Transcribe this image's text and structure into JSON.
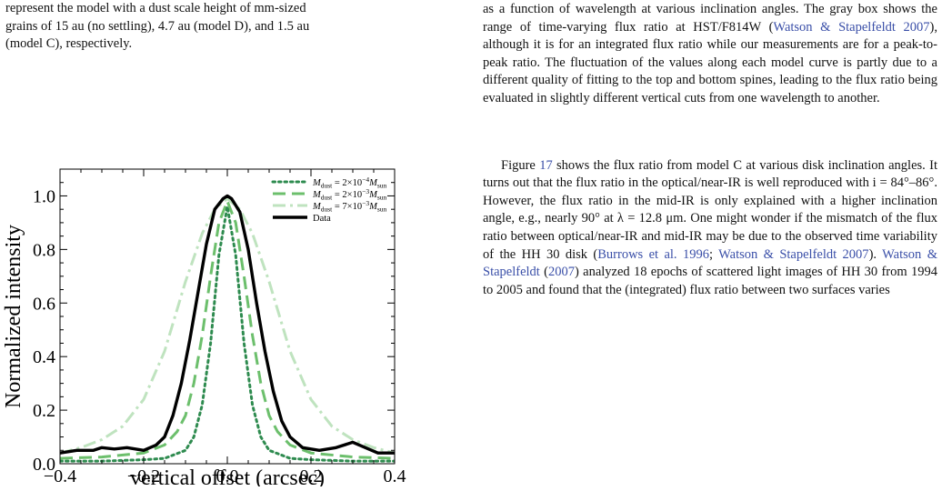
{
  "left_column": {
    "intro_lines": [
      "represent the model with a dust scale height of mm-sized",
      "grains of 15 au (no settling), 4.7 au (model D), and 1.5 au",
      "(model C), respectively."
    ]
  },
  "right_column": {
    "paragraph1": {
      "part1": "as a function of wavelength at various inclination angles. The gray box shows the range of time-varying flux ratio at HST/F814W (",
      "cite1": "Watson & Stapelfeldt 2007",
      "part2": "), although it is for an integrated flux ratio while our measurements are for a peak-to-peak ratio. The fluctuation of the values along each model curve is partly due to a different quality of fitting to the top and bottom spines, leading to the flux ratio being evaluated in slightly different vertical cuts from one wavelength to another."
    },
    "paragraph2": {
      "part1": "Figure ",
      "figref": "17",
      "part2": " shows the flux ratio from model C at various disk inclination angles. It turns out that the flux ratio in the optical/near-IR is well reproduced with i = 84°–86°. However, the flux ratio in the mid-IR is only explained with a higher inclination angle, e.g., nearly 90° at λ = 12.8 μm. One might wonder if the mismatch of the flux ratio between optical/near-IR and mid-IR may be due to the observed time variability of the HH 30 disk (",
      "cite1": "Burrows et al. 1996",
      "sep": "; ",
      "cite2": "Watson & Stapelfeldt 2007",
      "part3": "). ",
      "cite3": "Watson & Stapelfeldt",
      "part4": " (",
      "cite3year": "2007",
      "part5": ") analyzed 18 epochs of scattered light images of HH 30 from 1994 to 2005 and found that the (integrated) flux ratio between two surfaces varies"
    }
  },
  "chart_data": {
    "type": "line",
    "xlabel": "vertical offset (arcsec)",
    "ylabel": "Normalized intensity",
    "xlim": [
      -0.4,
      0.4
    ],
    "ylim": [
      0.0,
      1.1
    ],
    "xticks": [
      -0.4,
      -0.2,
      0.0,
      0.2,
      0.4
    ],
    "xtick_labels": [
      "−0.4",
      "−0.2",
      "0.0",
      "0.2",
      "0.4"
    ],
    "yticks": [
      0.0,
      0.2,
      0.4,
      0.6,
      0.8,
      1.0
    ],
    "ytick_labels": [
      "0.0",
      "0.2",
      "0.4",
      "0.6",
      "0.8",
      "1.0"
    ],
    "legend_position": "top-right",
    "grid": false,
    "series": [
      {
        "name": "M_dust = 2×10⁻⁴ M_sun",
        "legend_main": "M",
        "legend_sub": "dust",
        "legend_mid": " = 2×10",
        "legend_sup": "−4",
        "legend_end_main": "M",
        "legend_end_sub": "sun",
        "color": "#2e8b4f",
        "style": "dotted",
        "x": [
          -0.4,
          -0.3,
          -0.2,
          -0.15,
          -0.1,
          -0.08,
          -0.06,
          -0.04,
          -0.02,
          0.0,
          0.02,
          0.04,
          0.06,
          0.08,
          0.1,
          0.15,
          0.2,
          0.3,
          0.4
        ],
        "y": [
          0.01,
          0.01,
          0.015,
          0.02,
          0.05,
          0.1,
          0.22,
          0.45,
          0.78,
          0.96,
          0.78,
          0.45,
          0.22,
          0.1,
          0.05,
          0.02,
          0.015,
          0.01,
          0.01
        ]
      },
      {
        "name": "M_dust = 2×10⁻³ M_sun",
        "legend_main": "M",
        "legend_sub": "dust",
        "legend_mid": " = 2×10",
        "legend_sup": "−3",
        "legend_end_main": "M",
        "legend_end_sub": "sun",
        "color": "#6cbf6c",
        "style": "dashed",
        "x": [
          -0.4,
          -0.3,
          -0.2,
          -0.15,
          -0.12,
          -0.1,
          -0.08,
          -0.06,
          -0.04,
          -0.02,
          0.0,
          0.02,
          0.04,
          0.06,
          0.08,
          0.1,
          0.12,
          0.15,
          0.2,
          0.3,
          0.4
        ],
        "y": [
          0.02,
          0.025,
          0.04,
          0.07,
          0.12,
          0.18,
          0.3,
          0.48,
          0.7,
          0.9,
          0.98,
          0.9,
          0.7,
          0.48,
          0.3,
          0.18,
          0.12,
          0.07,
          0.04,
          0.025,
          0.02
        ]
      },
      {
        "name": "M_dust = 7×10⁻³ M_sun",
        "legend_main": "M",
        "legend_sub": "dust",
        "legend_mid": " = 7×10",
        "legend_sup": "−3",
        "legend_end_main": "M",
        "legend_end_sub": "sun",
        "color": "#bfe3bf",
        "style": "dashdot",
        "x": [
          -0.4,
          -0.35,
          -0.3,
          -0.25,
          -0.2,
          -0.15,
          -0.1,
          -0.06,
          -0.03,
          0.0,
          0.03,
          0.06,
          0.1,
          0.15,
          0.2,
          0.25,
          0.3,
          0.35,
          0.4
        ],
        "y": [
          0.04,
          0.06,
          0.09,
          0.14,
          0.24,
          0.42,
          0.68,
          0.86,
          0.95,
          0.99,
          0.95,
          0.86,
          0.68,
          0.42,
          0.24,
          0.14,
          0.09,
          0.06,
          0.04
        ]
      },
      {
        "name": "Data",
        "legend_main": "Data",
        "color": "#000000",
        "style": "solid",
        "x": [
          -0.4,
          -0.36,
          -0.32,
          -0.3,
          -0.27,
          -0.24,
          -0.2,
          -0.17,
          -0.15,
          -0.13,
          -0.11,
          -0.09,
          -0.07,
          -0.05,
          -0.03,
          -0.01,
          0.0,
          0.01,
          0.03,
          0.05,
          0.07,
          0.09,
          0.11,
          0.13,
          0.15,
          0.18,
          0.22,
          0.26,
          0.3,
          0.33,
          0.36,
          0.4
        ],
        "y": [
          0.04,
          0.05,
          0.05,
          0.06,
          0.055,
          0.06,
          0.05,
          0.07,
          0.1,
          0.18,
          0.3,
          0.46,
          0.64,
          0.82,
          0.95,
          0.99,
          1.0,
          0.99,
          0.94,
          0.8,
          0.6,
          0.42,
          0.27,
          0.16,
          0.1,
          0.06,
          0.05,
          0.06,
          0.08,
          0.06,
          0.04,
          0.04
        ]
      }
    ]
  }
}
